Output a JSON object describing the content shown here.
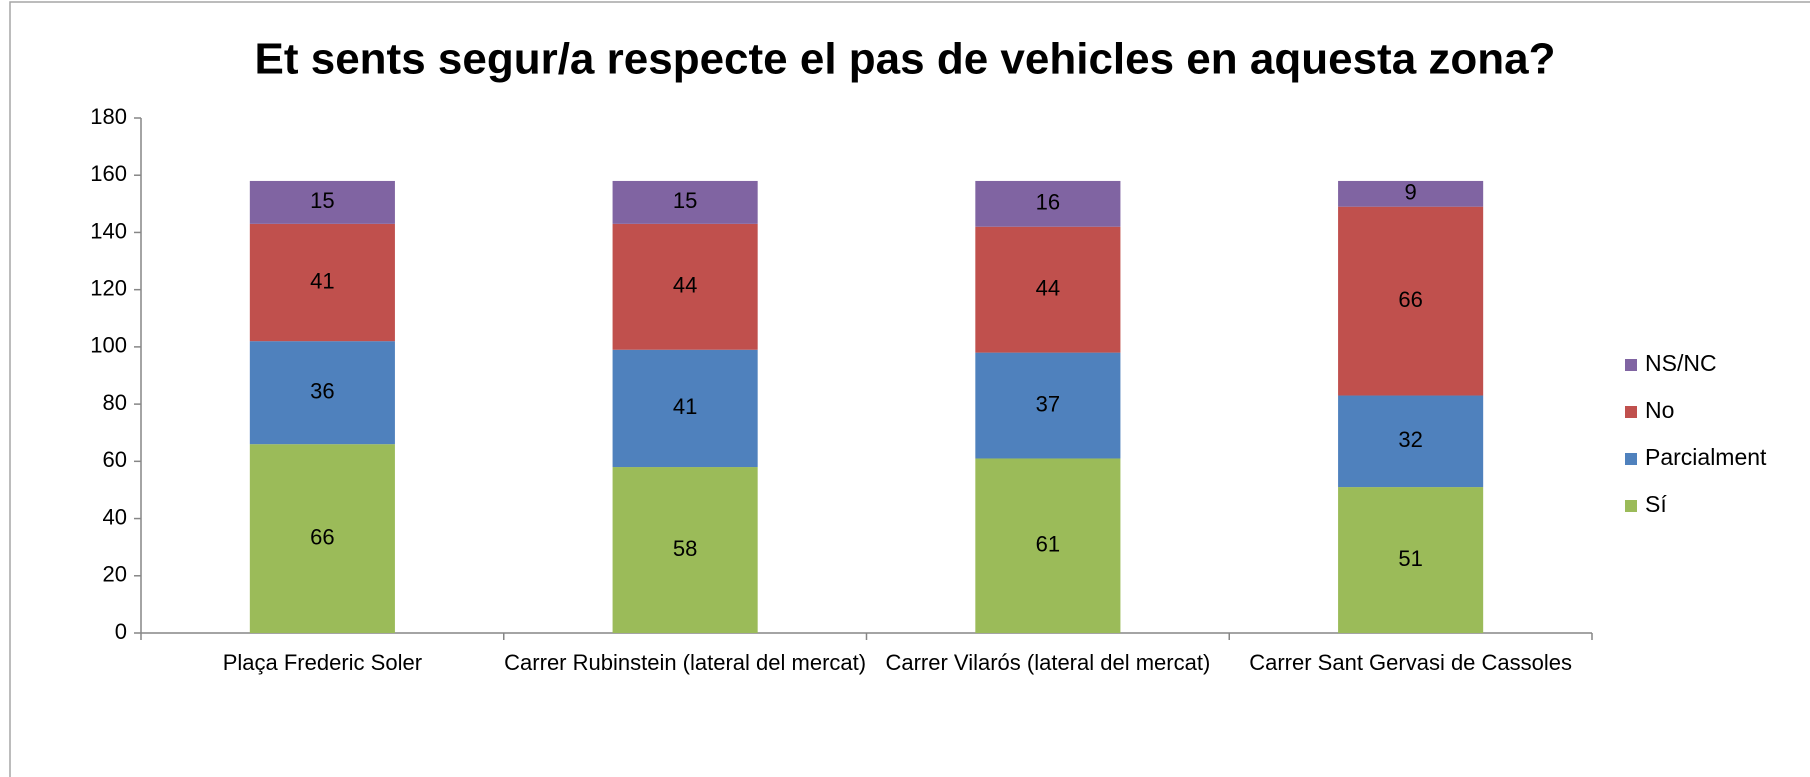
{
  "chart_data": {
    "type": "stacked_bar",
    "title": "Et sents segur/a respecte el pas de vehicles en aquesta zona?",
    "categories": [
      "Plaça Frederic Soler",
      "Carrer Rubinstein (lateral del mercat)",
      "Carrer Vilarós (lateral del mercat)",
      "Carrer Sant Gervasi de Cassoles"
    ],
    "series": [
      {
        "name": "Sí",
        "color": "#9bbb59",
        "values": [
          66,
          58,
          61,
          51
        ]
      },
      {
        "name": "Parcialment",
        "color": "#4f81bd",
        "values": [
          36,
          41,
          37,
          32
        ]
      },
      {
        "name": "No",
        "color": "#c0504d",
        "values": [
          41,
          44,
          44,
          66
        ]
      },
      {
        "name": "NS/NC",
        "color": "#8064a2",
        "values": [
          15,
          15,
          16,
          9
        ]
      }
    ],
    "ylim": [
      0,
      180
    ],
    "yticks": [
      0,
      20,
      40,
      60,
      80,
      100,
      120,
      140,
      160,
      180
    ],
    "grid": false,
    "legend": "right"
  }
}
